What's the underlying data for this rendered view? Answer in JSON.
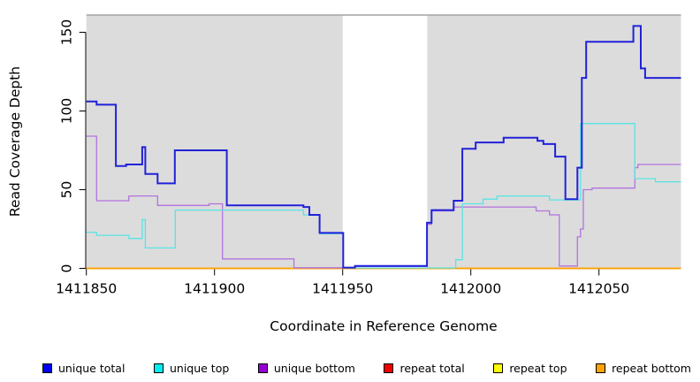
{
  "chart_data": {
    "type": "line",
    "step": true,
    "title": "",
    "xlabel": "Coordinate in Reference Genome",
    "ylabel": "Read Coverage Depth",
    "xlim": [
      1411850,
      1412082
    ],
    "ylim": [
      0,
      155
    ],
    "x_ticks": [
      1411850,
      1411900,
      1411950,
      1412000,
      1412050
    ],
    "y_ticks": [
      0,
      50,
      100,
      150
    ],
    "grid": false,
    "legend_position": "bottom",
    "background": {
      "shaded_color": "#dcdcdc",
      "shaded_regions": [
        [
          1411850,
          1411950
        ],
        [
          1411983,
          1412082
        ]
      ],
      "white_gap": [
        [
          1411950,
          1411983
        ]
      ],
      "top_border_color": "#a3a3a3"
    },
    "series": [
      {
        "name": "repeat total",
        "color": "#ee0000",
        "width": 1.3,
        "points": [
          [
            1411850,
            0
          ]
        ]
      },
      {
        "name": "repeat top",
        "color": "#ffff00",
        "width": 1.3,
        "points": [
          [
            1411850,
            0
          ]
        ]
      },
      {
        "name": "repeat bottom",
        "color": "#ffa000",
        "width": 1.7,
        "points": [
          [
            1411850,
            0
          ]
        ]
      },
      {
        "name": "unique bottom",
        "color": "#b273de",
        "width": 1.3,
        "points": [
          [
            1411850,
            84
          ],
          [
            1411854,
            43
          ],
          [
            1411866.6,
            46
          ],
          [
            1411877.8,
            40
          ],
          [
            1411897.9,
            41
          ],
          [
            1411903.1,
            6
          ],
          [
            1411931,
            0.4
          ],
          [
            1411954.8,
            1.2
          ],
          [
            1411982.9,
            28
          ],
          [
            1411984.7,
            36.5
          ],
          [
            1411993.3,
            39
          ],
          [
            1412025.5,
            36.5
          ],
          [
            1412030.7,
            34
          ],
          [
            1412034.5,
            1.5
          ],
          [
            1412041.6,
            20
          ],
          [
            1412042.8,
            25
          ],
          [
            1412043.9,
            50
          ],
          [
            1412047.3,
            51
          ],
          [
            1412064,
            64
          ],
          [
            1412065.2,
            66
          ]
        ]
      },
      {
        "name": "unique top",
        "color": "#58e4e4",
        "width": 1.3,
        "points": [
          [
            1411850,
            23
          ],
          [
            1411854,
            21
          ],
          [
            1411866.6,
            19
          ],
          [
            1411871.8,
            31
          ],
          [
            1411873,
            13
          ],
          [
            1411884.7,
            37
          ],
          [
            1411934.7,
            34
          ],
          [
            1411941,
            22
          ],
          [
            1411950.2,
            0.3
          ],
          [
            1411994.1,
            5.5
          ],
          [
            1411996.7,
            41
          ],
          [
            1412004.8,
            44
          ],
          [
            1412010.2,
            46
          ],
          [
            1412030.7,
            43.5
          ],
          [
            1412042.8,
            92
          ],
          [
            1412064,
            57
          ],
          [
            1412072,
            55
          ]
        ]
      },
      {
        "name": "unique total",
        "color": "#2121d9",
        "width": 2,
        "points": [
          [
            1411850,
            106
          ],
          [
            1411854,
            104
          ],
          [
            1411861.5,
            65
          ],
          [
            1411865.5,
            66
          ],
          [
            1411871.8,
            77
          ],
          [
            1411873,
            60
          ],
          [
            1411877.8,
            54
          ],
          [
            1411884.5,
            75
          ],
          [
            1411904.8,
            40
          ],
          [
            1411934.7,
            39
          ],
          [
            1411937,
            34
          ],
          [
            1411941,
            22.5
          ],
          [
            1411950.2,
            0.5
          ],
          [
            1411954.8,
            1.5
          ],
          [
            1411982.9,
            29
          ],
          [
            1411984.7,
            37
          ],
          [
            1411993.3,
            43
          ],
          [
            1411996.7,
            76
          ],
          [
            1412001.9,
            80
          ],
          [
            1412012.8,
            83
          ],
          [
            1412026,
            81
          ],
          [
            1412028.3,
            79
          ],
          [
            1412032.9,
            71
          ],
          [
            1412036.9,
            44
          ],
          [
            1412041.6,
            64
          ],
          [
            1412043.3,
            121
          ],
          [
            1412045,
            144
          ],
          [
            1412063.4,
            154
          ],
          [
            1412066.3,
            127
          ],
          [
            1412068,
            121
          ]
        ]
      }
    ]
  },
  "legend": {
    "items": [
      {
        "label": "unique total",
        "color": "#0000ee"
      },
      {
        "label": "unique top",
        "color": "#00eeee"
      },
      {
        "label": "unique bottom",
        "color": "#9400d3"
      },
      {
        "label": "repeat total",
        "color": "#ee0000"
      },
      {
        "label": "repeat top",
        "color": "#ffff00"
      },
      {
        "label": "repeat bottom",
        "color": "#ffa500"
      }
    ]
  }
}
